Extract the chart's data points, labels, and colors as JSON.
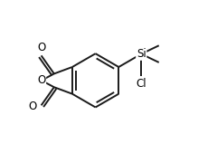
{
  "background_color": "#ffffff",
  "bond_color": "#1a1a1a",
  "line_width": 1.4,
  "font_size_label": 8.5,
  "figsize": [
    2.4,
    1.59
  ],
  "dpi": 100,
  "xlim": [
    0.0,
    1.0
  ],
  "ylim": [
    0.05,
    0.98
  ]
}
